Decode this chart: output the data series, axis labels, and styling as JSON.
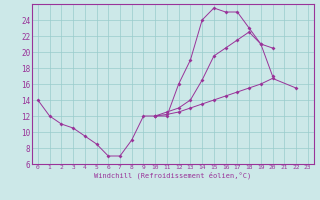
{
  "bg_color": "#cce8e8",
  "grid_color": "#99cccc",
  "line_color": "#993399",
  "xlabel": "Windchill (Refroidissement éolien,°C)",
  "xmin": -0.5,
  "xmax": 23.5,
  "ymin": 6,
  "ymax": 26,
  "yticks": [
    6,
    8,
    10,
    12,
    14,
    16,
    18,
    20,
    22,
    24
  ],
  "xticks": [
    0,
    1,
    2,
    3,
    4,
    5,
    6,
    7,
    8,
    9,
    10,
    11,
    12,
    13,
    14,
    15,
    16,
    17,
    18,
    19,
    20,
    21,
    22,
    23
  ],
  "series": [
    {
      "x": [
        0,
        1,
        2,
        3,
        4,
        5,
        6,
        7,
        8,
        9,
        10,
        11,
        12,
        13,
        14,
        15,
        16,
        17,
        18,
        19,
        20
      ],
      "y": [
        14,
        12,
        11,
        10.5,
        9.5,
        8.5,
        7,
        7,
        9,
        12,
        12,
        12,
        16,
        19,
        24,
        25.5,
        25,
        25,
        23,
        21,
        17
      ]
    },
    {
      "x": [
        10,
        11,
        12,
        13,
        14,
        15,
        16,
        17,
        18,
        19,
        20
      ],
      "y": [
        12,
        12.5,
        13,
        14,
        16.5,
        19.5,
        20.5,
        21.5,
        22.5,
        21,
        20.5
      ]
    },
    {
      "x": [
        10,
        11,
        12,
        13,
        14,
        15,
        16,
        17,
        18,
        19,
        20,
        22
      ],
      "y": [
        12,
        12.2,
        12.5,
        13,
        13.5,
        14,
        14.5,
        15,
        15.5,
        16,
        16.7,
        15.5
      ]
    }
  ]
}
